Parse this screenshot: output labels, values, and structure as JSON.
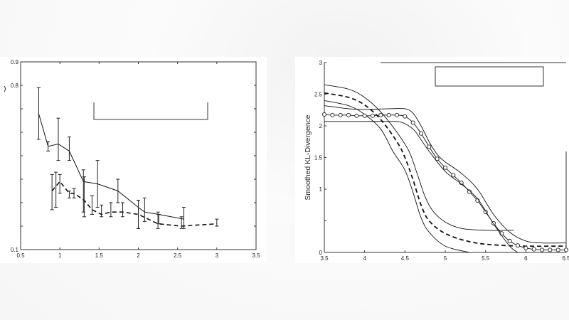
{
  "chart_data": [
    {
      "type": "line",
      "title": "",
      "xlabel": "",
      "ylabel": "",
      "xlim": [
        0.5,
        3.5
      ],
      "ylim": [
        0.1,
        0.9
      ],
      "xticks": [
        "0.5",
        "1",
        "1.5",
        "2",
        "2.5",
        "3",
        "3.5"
      ],
      "yticks": [
        "0.1",
        "0.8",
        "0.9"
      ],
      "ytick_positions": [
        0.1,
        0.2,
        0.3,
        0.4,
        0.5,
        0.6,
        0.7,
        0.8,
        0.9
      ],
      "grid": false,
      "legend": {
        "position": "upper-center",
        "entries": []
      },
      "series": [
        {
          "name": "solid",
          "style": "solid",
          "x": [
            0.73,
            0.85,
            0.98,
            1.12,
            1.3,
            1.48,
            1.74,
            2.0,
            2.08,
            2.26,
            2.58
          ],
          "y": [
            0.68,
            0.54,
            0.55,
            0.52,
            0.39,
            0.38,
            0.35,
            0.28,
            0.26,
            0.25,
            0.23
          ],
          "error_low": [
            0.57,
            0.52,
            0.48,
            0.48,
            0.26,
            0.28,
            0.3,
            0.19,
            0.22,
            0.21,
            0.19
          ],
          "error_high": [
            0.79,
            0.56,
            0.66,
            0.58,
            0.44,
            0.48,
            0.4,
            0.31,
            0.32,
            0.25,
            0.28
          ]
        },
        {
          "name": "dashed",
          "style": "dashed",
          "x": [
            0.9,
            0.95,
            1.0,
            1.12,
            1.18,
            1.31,
            1.41,
            1.53,
            1.65,
            1.8,
            2.0,
            2.25,
            2.55,
            3.0
          ],
          "y": [
            0.35,
            0.37,
            0.39,
            0.34,
            0.34,
            0.31,
            0.27,
            0.25,
            0.26,
            0.26,
            0.25,
            0.21,
            0.2,
            0.21
          ],
          "error_low": [
            0.27,
            0.28,
            0.34,
            0.32,
            0.32,
            0.24,
            0.25,
            0.24,
            0.24,
            0.24,
            0.19,
            0.19,
            0.19,
            0.2
          ],
          "error_high": [
            0.42,
            0.43,
            0.42,
            0.35,
            0.36,
            0.41,
            0.33,
            0.29,
            0.3,
            0.3,
            0.31,
            0.26,
            0.24,
            0.23
          ]
        }
      ]
    },
    {
      "type": "line",
      "title": "",
      "xlabel": "",
      "ylabel": "Smoothed KL-Divergence",
      "xlim": [
        3.5,
        6.5
      ],
      "ylim": [
        0,
        3
      ],
      "xticks": [
        "3.5",
        "4",
        "4.5",
        "5",
        "5.5",
        "6",
        "6.5"
      ],
      "yticks": [
        "0",
        "1",
        "1.5",
        "2",
        "2.5",
        "3"
      ],
      "ytick_positions": [
        0,
        0.5,
        1,
        1.5,
        2,
        2.5,
        3
      ],
      "grid": false,
      "legend": {
        "position": "upper-right",
        "entries": []
      },
      "series": [
        {
          "name": "dashed-mean",
          "style": "dashed",
          "x": [
            3.5,
            3.8,
            4.0,
            4.2,
            4.4,
            4.5,
            4.6,
            4.7,
            4.8,
            5.0,
            5.3,
            5.6,
            6.0,
            6.5
          ],
          "y": [
            2.52,
            2.45,
            2.33,
            2.1,
            1.75,
            1.5,
            1.15,
            0.75,
            0.5,
            0.3,
            0.17,
            0.12,
            0.1,
            0.1
          ]
        },
        {
          "name": "dashed-upper-band",
          "style": "solid",
          "x": [
            3.5,
            3.8,
            4.0,
            4.2,
            4.4,
            4.55,
            4.65,
            4.75,
            4.85,
            5.0,
            5.2,
            5.5,
            5.85
          ],
          "y": [
            2.65,
            2.58,
            2.45,
            2.22,
            1.9,
            1.6,
            1.25,
            0.88,
            0.65,
            0.48,
            0.38,
            0.35,
            0.35
          ]
        },
        {
          "name": "dashed-lower-band",
          "style": "solid",
          "x": [
            3.5,
            3.8,
            4.0,
            4.2,
            4.35,
            4.5,
            4.6,
            4.7,
            4.8,
            5.0,
            5.3
          ],
          "y": [
            2.4,
            2.32,
            2.18,
            1.95,
            1.6,
            1.3,
            0.95,
            0.55,
            0.32,
            0.1,
            0.0
          ]
        },
        {
          "name": "circles-mean",
          "style": "solid-circle-markers",
          "x": [
            3.5,
            3.6,
            3.7,
            3.8,
            3.9,
            4.0,
            4.1,
            4.2,
            4.3,
            4.4,
            4.5,
            4.6,
            4.7,
            4.8,
            4.9,
            5.0,
            5.1,
            5.2,
            5.3,
            5.4,
            5.5,
            5.6,
            5.7,
            5.8,
            5.9,
            6.0,
            6.1,
            6.2,
            6.3,
            6.4,
            6.5
          ],
          "y": [
            2.18,
            2.17,
            2.17,
            2.17,
            2.16,
            2.16,
            2.16,
            2.17,
            2.17,
            2.17,
            2.15,
            2.05,
            1.88,
            1.67,
            1.48,
            1.34,
            1.22,
            1.1,
            0.96,
            0.82,
            0.64,
            0.46,
            0.3,
            0.18,
            0.11,
            0.07,
            0.05,
            0.04,
            0.04,
            0.04,
            0.04
          ]
        },
        {
          "name": "circles-upper-band",
          "style": "solid",
          "x": [
            3.5,
            3.8,
            4.0,
            4.3,
            4.5,
            4.6,
            4.7,
            4.8,
            4.9,
            5.0,
            5.2,
            5.4,
            5.6,
            5.8,
            6.0,
            6.2,
            6.5
          ],
          "y": [
            2.32,
            2.27,
            2.26,
            2.27,
            2.27,
            2.2,
            2.0,
            1.75,
            1.55,
            1.43,
            1.25,
            1.0,
            0.6,
            0.32,
            0.18,
            0.15,
            0.15
          ]
        },
        {
          "name": "circles-lower-band",
          "style": "solid",
          "x": [
            3.5,
            3.8,
            4.0,
            4.3,
            4.45,
            4.6,
            4.7,
            4.8,
            5.0,
            5.2,
            5.4,
            5.6,
            5.8,
            5.9
          ],
          "y": [
            2.07,
            2.07,
            2.07,
            2.07,
            2.06,
            1.95,
            1.78,
            1.6,
            1.28,
            1.08,
            0.85,
            0.45,
            0.1,
            0.0
          ]
        }
      ]
    }
  ]
}
